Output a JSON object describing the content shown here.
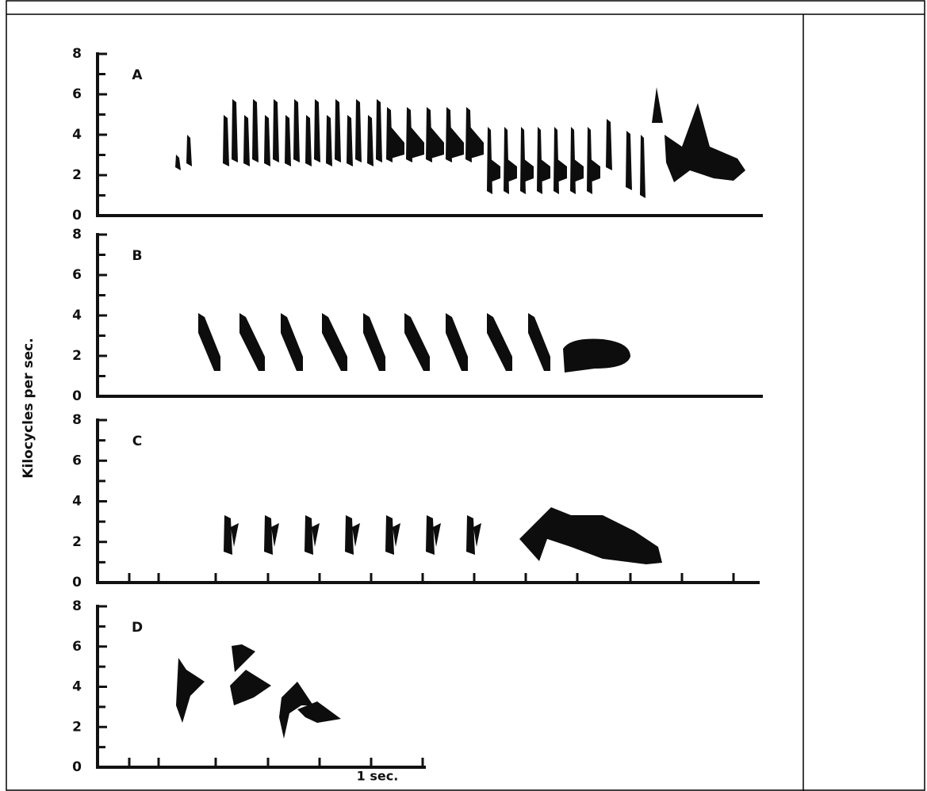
{
  "shared_ylabel": "Kilocycles per sec.",
  "chart_data": [
    {
      "type": "spectrogram",
      "title": "A",
      "ylim": [
        0,
        8
      ],
      "yticks": [
        0,
        2,
        4,
        6,
        8
      ]
    },
    {
      "type": "spectrogram",
      "title": "B",
      "ylim": [
        0,
        8
      ],
      "yticks": [
        0,
        2,
        4,
        6,
        8
      ]
    },
    {
      "type": "spectrogram",
      "title": "C",
      "ylim": [
        0,
        8
      ],
      "yticks": [
        0,
        2,
        4,
        6,
        8
      ]
    },
    {
      "type": "spectrogram",
      "title": "D",
      "ylim": [
        0,
        8
      ],
      "yticks": [
        0,
        2,
        4,
        6,
        8
      ],
      "time_label": "1 sec."
    }
  ]
}
